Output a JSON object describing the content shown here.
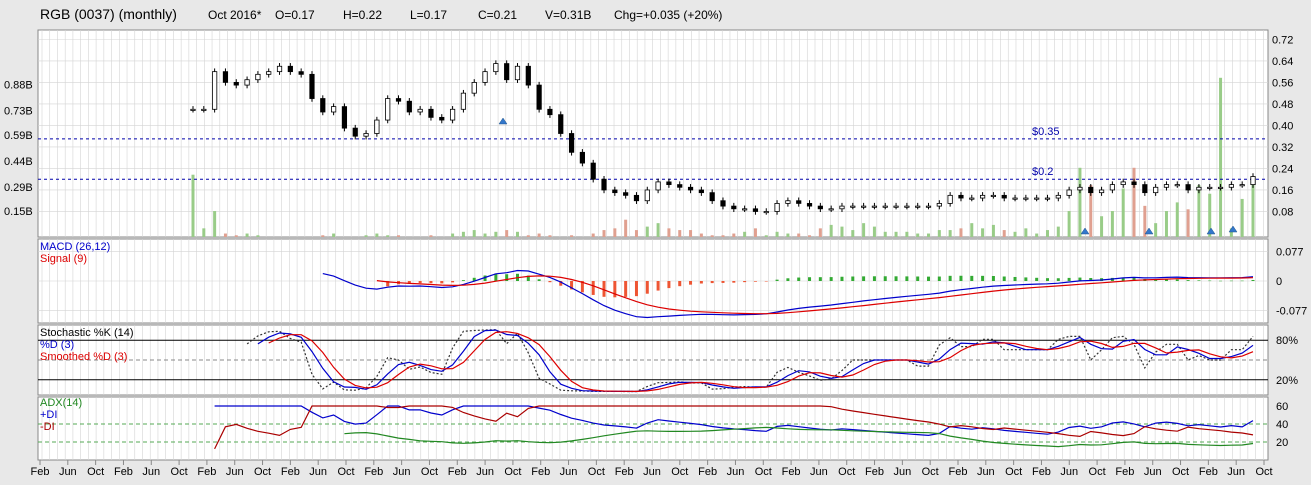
{
  "header": {
    "title": "RGB (0037) (monthly)",
    "period": "Oct 2016*",
    "open": "O=0.17",
    "high": "H=0.22",
    "low": "L=0.17",
    "close": "C=0.21",
    "volume": "V=0.31B",
    "change": "Chg=+0.035 (+20%)"
  },
  "colors": {
    "background": "#e8e8e8",
    "panel": "#ffffff",
    "macd_line": "#0000cc",
    "signal_line": "#dd0000",
    "hist_pos": "#33aa33",
    "hist_neg": "#ee5533",
    "adx_line": "#228822",
    "ref_line": "#0000aa",
    "arrow": "#3377cc"
  },
  "chart_data": [
    {
      "type": "candlestick",
      "title": "RGB (0037) (monthly)",
      "y_ticks": [
        "0.72",
        "0.64",
        "0.56",
        "0.48",
        "0.40",
        "0.32",
        "0.24",
        "0.16",
        "0.08"
      ],
      "ylim": [
        0.0,
        0.74
      ],
      "volume_ticks": [
        "0.88B",
        "0.73B",
        "0.59B",
        "0.44B",
        "0.29B",
        "0.15B"
      ],
      "volume_lim": [
        0.0,
        1.15
      ],
      "reference_lines": [
        {
          "label": "$0.35",
          "value": 0.35
        },
        {
          "label": "$0.2",
          "value": 0.2
        }
      ],
      "x_labels": [
        "Feb",
        "Jun",
        "Oct",
        "Feb",
        "Jun",
        "Oct",
        "Feb",
        "Jun",
        "Oct",
        "Feb",
        "Jun",
        "Oct",
        "Feb",
        "Jun",
        "Oct",
        "Feb",
        "Jun",
        "Oct",
        "Feb",
        "Jun",
        "Oct",
        "Feb",
        "Jun",
        "Oct",
        "Feb",
        "Jun",
        "Oct",
        "Feb",
        "Jun",
        "Oct",
        "Feb",
        "Jun",
        "Oct",
        "Feb",
        "Jun",
        "Oct",
        "Feb",
        "Jun",
        "Oct",
        "Feb",
        "Jun",
        "Oct",
        "Feb",
        "Jun",
        "Oct"
      ],
      "close": [
        0.46,
        0.46,
        0.6,
        0.56,
        0.55,
        0.57,
        0.59,
        0.6,
        0.62,
        0.6,
        0.59,
        0.5,
        0.45,
        0.47,
        0.39,
        0.36,
        0.37,
        0.42,
        0.5,
        0.49,
        0.45,
        0.46,
        0.43,
        0.42,
        0.46,
        0.52,
        0.56,
        0.6,
        0.63,
        0.57,
        0.62,
        0.55,
        0.46,
        0.44,
        0.37,
        0.3,
        0.26,
        0.2,
        0.16,
        0.15,
        0.14,
        0.12,
        0.16,
        0.19,
        0.18,
        0.17,
        0.16,
        0.15,
        0.12,
        0.1,
        0.09,
        0.09,
        0.08,
        0.08,
        0.11,
        0.12,
        0.11,
        0.1,
        0.09,
        0.09,
        0.1,
        0.1,
        0.1,
        0.1,
        0.1,
        0.1,
        0.1,
        0.1,
        0.1,
        0.11,
        0.14,
        0.13,
        0.13,
        0.14,
        0.14,
        0.13,
        0.13,
        0.13,
        0.13,
        0.13,
        0.14,
        0.16,
        0.17,
        0.15,
        0.16,
        0.18,
        0.19,
        0.18,
        0.15,
        0.17,
        0.18,
        0.18,
        0.16,
        0.17,
        0.17,
        0.17,
        0.18,
        0.18,
        0.21
      ],
      "volume": [
        0.36,
        0.05,
        0.15,
        0.02,
        0.01,
        0.02,
        0.01,
        0.0,
        0.0,
        0.0,
        0.0,
        0.0,
        0.01,
        0.02,
        0.0,
        0.0,
        0.01,
        0.02,
        0.01,
        0.01,
        0.0,
        0.0,
        0.01,
        0.0,
        0.02,
        0.03,
        0.04,
        0.02,
        0.03,
        0.04,
        0.03,
        0.01,
        0.02,
        0.01,
        0.0,
        0.01,
        0.0,
        0.02,
        0.04,
        0.05,
        0.1,
        0.04,
        0.06,
        0.08,
        0.05,
        0.04,
        0.04,
        0.02,
        0.01,
        0.01,
        0.02,
        0.03,
        0.05,
        0.01,
        0.03,
        0.02,
        0.02,
        0.01,
        0.05,
        0.07,
        0.06,
        0.04,
        0.08,
        0.06,
        0.03,
        0.03,
        0.03,
        0.02,
        0.02,
        0.04,
        0.04,
        0.05,
        0.08,
        0.05,
        0.07,
        0.04,
        0.03,
        0.05,
        0.02,
        0.04,
        0.06,
        0.15,
        0.4,
        0.3,
        0.12,
        0.15,
        0.28,
        0.4,
        0.18,
        0.08,
        0.15,
        0.2,
        0.16,
        0.3,
        0.25,
        0.92,
        0.05,
        0.22,
        0.31
      ]
    },
    {
      "type": "line",
      "title": "MACD (26,12)",
      "series_labels": [
        "MACD (26,12)",
        "Signal (9)"
      ],
      "y_ticks": [
        "0.077",
        "0",
        "-0.077"
      ],
      "ylim": [
        -0.11,
        0.11
      ]
    },
    {
      "type": "line",
      "title": "Stochastic %K (14)",
      "series_labels": [
        "Stochastic %K (14)",
        "%D (3)",
        "Smoothed %D (3)"
      ],
      "y_ticks": [
        "80%",
        "20%"
      ],
      "ylim": [
        0,
        100
      ]
    },
    {
      "type": "line",
      "title": "ADX(14)",
      "series_labels": [
        "ADX(14)",
        "+DI",
        "-DI"
      ],
      "y_ticks": [
        "60",
        "40",
        "20"
      ],
      "ylim": [
        0,
        70
      ]
    }
  ]
}
